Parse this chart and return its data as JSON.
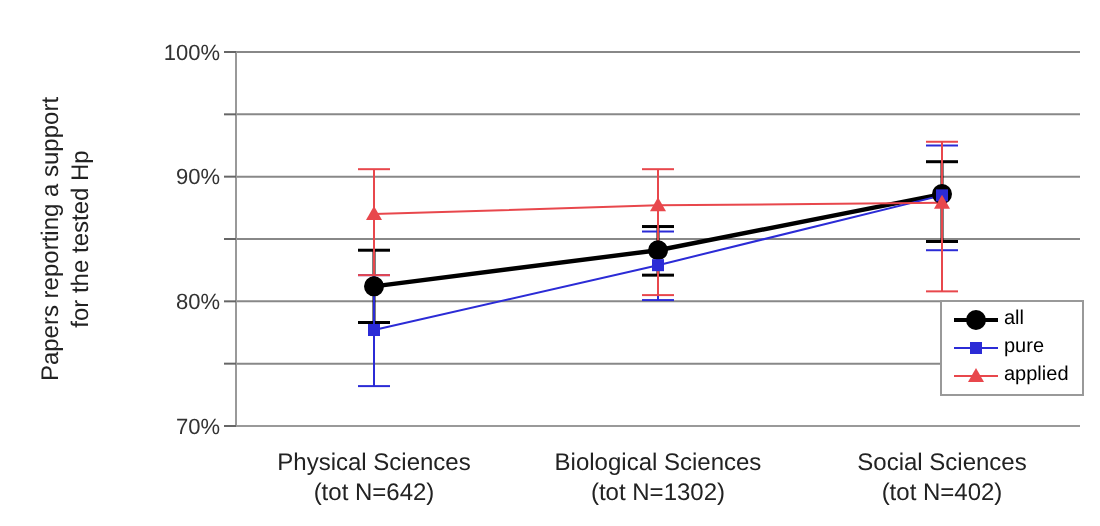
{
  "chart_data": {
    "type": "line",
    "ylabel": "Papers reporting a support\nfor the tested Hp",
    "categories": [
      "Physical Sciences\n(tot N=642)",
      "Biological Sciences\n(tot N=1302)",
      "Social Sciences\n(tot N=402)"
    ],
    "series": [
      {
        "name": "all",
        "color": "#000000",
        "marker": "circle",
        "values": [
          81.2,
          84.1,
          88.6
        ],
        "errors": [
          [
            78.3,
            84.1
          ],
          [
            82.1,
            86.0
          ],
          [
            84.8,
            91.2
          ]
        ]
      },
      {
        "name": "pure",
        "color": "#2b2bd6",
        "marker": "square",
        "values": [
          77.7,
          82.9,
          88.5
        ],
        "errors": [
          [
            73.2,
            82.1
          ],
          [
            80.1,
            85.6
          ],
          [
            84.1,
            92.5
          ]
        ]
      },
      {
        "name": "applied",
        "color": "#e8474c",
        "marker": "triangle",
        "values": [
          87.0,
          87.7,
          87.9
        ],
        "errors": [
          [
            82.1,
            90.6
          ],
          [
            80.5,
            90.6
          ],
          [
            80.8,
            92.8
          ]
        ]
      }
    ],
    "ylim": [
      70,
      100
    ],
    "yticks": [
      {
        "value": 70,
        "label": "70%"
      },
      {
        "value": 75,
        "label": null
      },
      {
        "value": 80,
        "label": "80%"
      },
      {
        "value": 85,
        "label": null
      },
      {
        "value": 90,
        "label": "90%"
      },
      {
        "value": 95,
        "label": null
      },
      {
        "value": 100,
        "label": "100%"
      }
    ],
    "grid": "y",
    "legend": "bottom right"
  }
}
